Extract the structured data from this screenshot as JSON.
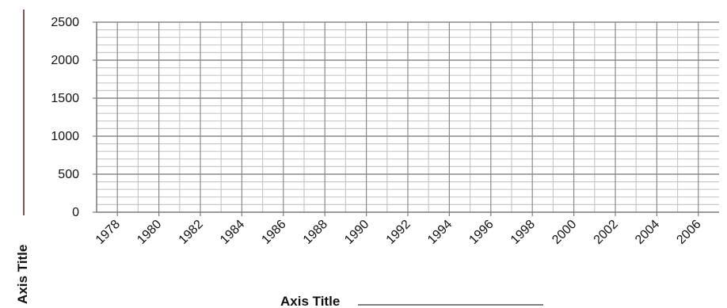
{
  "chart_data": {
    "type": "line",
    "title": "",
    "xlabel": "Axis Title",
    "ylabel": "Axis Title",
    "x": [
      1978,
      1980,
      1982,
      1984,
      1986,
      1988,
      1990,
      1992,
      1994,
      1996,
      1998,
      2000,
      2002,
      2004,
      2006
    ],
    "x_tick_labels": [
      "1978",
      "1980",
      "1982",
      "1984",
      "1986",
      "1988",
      "1990",
      "1992",
      "1994",
      "1996",
      "1998",
      "2000",
      "2002",
      "2004",
      "2006"
    ],
    "xlim": [
      1977,
      2007
    ],
    "ylim": [
      0,
      2500
    ],
    "y_ticks": [
      0,
      500,
      1000,
      1500,
      2000,
      2500
    ],
    "y_tick_labels": [
      "0",
      "500",
      "1000",
      "1500",
      "2000",
      "2500"
    ],
    "y_minor_step": 100,
    "series": [],
    "grid": true,
    "legend": "none",
    "colors": {
      "major_grid": "#8a8a8a",
      "minor_grid": "#c8c8c8",
      "axis_line": "#7a7a7a",
      "text": "#111111",
      "blank_line": "#5a1e1e"
    }
  }
}
